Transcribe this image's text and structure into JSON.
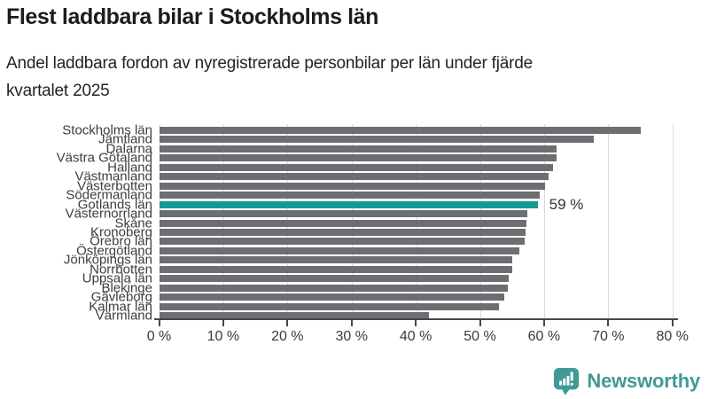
{
  "header": {
    "title": "Flest laddbara bilar i Stockholms län",
    "subtitle_lines": [
      "Andel laddbara fordon av nyregistrerade personbilar per län under fjärde",
      "kvartalet 2025"
    ]
  },
  "chart_data": {
    "type": "bar",
    "orientation": "horizontal",
    "title": "Flest laddbara bilar i Stockholms län",
    "subtitle": "Andel laddbara fordon av nyregistrerade personbilar per län under fjärde kvartalet 2025",
    "unit": "%",
    "categories": [
      "Stockholms län",
      "Jämtland",
      "Dalarna",
      "Västra Götaland",
      "Halland",
      "Västmanland",
      "Västerbotten",
      "Södermanland",
      "Gotlands län",
      "Västernorrland",
      "Skåne",
      "Kronoberg",
      "Örebro län",
      "Östergötland",
      "Jönköpings län",
      "Norrbotten",
      "Uppsala län",
      "Blekinge",
      "Gävleborg",
      "Kalmar län",
      "Värmland"
    ],
    "values": [
      75.0,
      67.7,
      62.0,
      61.9,
      61.4,
      60.7,
      60.1,
      59.3,
      59.0,
      57.4,
      57.2,
      57.1,
      57.0,
      56.2,
      55.1,
      55.0,
      54.5,
      54.3,
      53.8,
      53.0,
      42.0
    ],
    "highlight": {
      "index": 8,
      "category": "Gotlands län",
      "label": "59 %"
    },
    "x_tick_values": [
      0,
      10,
      20,
      30,
      40,
      50,
      60,
      70,
      80
    ],
    "x_tick_labels": [
      "0 %",
      "10 %",
      "20 %",
      "30 %",
      "40 %",
      "50 %",
      "60 %",
      "70 %",
      "80 %"
    ],
    "xlim": [
      0,
      80
    ],
    "grid": true,
    "legend": "none",
    "colors": {
      "bar": "#6d6e71",
      "highlight": "#149a94",
      "gridline": "#d9d9d9",
      "axis": "#474747",
      "label": "#3d3d3d"
    }
  },
  "branding": {
    "name": "Newsworthy",
    "icon": "bar-chart-speech-bubble-icon",
    "color": "#419a94"
  }
}
